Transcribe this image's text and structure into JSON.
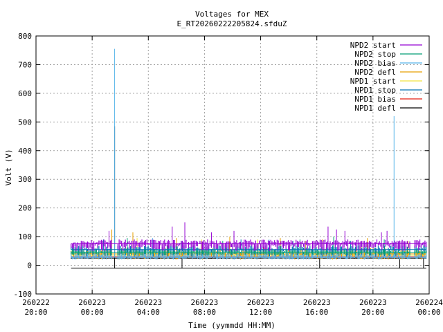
{
  "chart_data": {
    "type": "line",
    "title": "Voltages for MEX",
    "subtitle": "E_RT20260222205824.sfduZ",
    "xlabel": "Time (yymmdd HH:MM)",
    "ylabel": "Volt (V)",
    "ylim": [
      -100,
      800
    ],
    "xlim_hours": [
      -4,
      24
    ],
    "grid": true,
    "legend_position": "top-right",
    "y_ticks": [
      -100,
      0,
      100,
      200,
      300,
      400,
      500,
      600,
      700,
      800
    ],
    "x_ticks": [
      {
        "hour": -4,
        "date": "260222",
        "time": "20:00"
      },
      {
        "hour": 0,
        "date": "260223",
        "time": "00:00"
      },
      {
        "hour": 4,
        "date": "260223",
        "time": "04:00"
      },
      {
        "hour": 8,
        "date": "260223",
        "time": "08:00"
      },
      {
        "hour": 12,
        "date": "260223",
        "time": "12:00"
      },
      {
        "hour": 16,
        "date": "260223",
        "time": "16:00"
      },
      {
        "hour": 20,
        "date": "260223",
        "time": "20:00"
      },
      {
        "hour": 24,
        "date": "260224",
        "time": "00:00"
      }
    ],
    "series": [
      {
        "name": "NPD2 start",
        "color": "#9400d3",
        "base": 75,
        "band": [
          50,
          90
        ],
        "spikes": [
          [
            1.2,
            120
          ],
          [
            5.7,
            135
          ],
          [
            6.6,
            150
          ],
          [
            8.5,
            115
          ],
          [
            10.1,
            120
          ],
          [
            16.8,
            135
          ],
          [
            17.4,
            125
          ],
          [
            18.0,
            120
          ],
          [
            20.6,
            115
          ],
          [
            21.0,
            120
          ]
        ]
      },
      {
        "name": "NPD2 stop",
        "color": "#009e73",
        "base": 45,
        "band": [
          35,
          55
        ],
        "spikes": [
          [
            2.5,
            95
          ],
          [
            9.3,
            85
          ],
          [
            14.8,
            90
          ],
          [
            17.2,
            100
          ],
          [
            20.8,
            90
          ]
        ]
      },
      {
        "name": "NPD2 bias",
        "color": "#56b4e9",
        "base": 28,
        "band": [
          20,
          50
        ],
        "spikes": [
          [
            1.6,
            755
          ],
          [
            21.5,
            520
          ],
          [
            4.3,
            95
          ],
          [
            12.6,
            90
          ]
        ]
      },
      {
        "name": "NPD2 defl",
        "color": "#e69f00",
        "base": 40,
        "band": [
          20,
          60
        ],
        "spikes": [
          [
            1.4,
            125
          ],
          [
            2.9,
            115
          ],
          [
            6.0,
            95
          ],
          [
            9.8,
            100
          ],
          [
            13.4,
            95
          ],
          [
            16.4,
            90
          ],
          [
            19.6,
            95
          ],
          [
            22.5,
            85
          ]
        ]
      },
      {
        "name": "NPD1 start",
        "color": "#f0e442",
        "base": 35,
        "band": [
          30,
          40
        ],
        "spikes": [
          [
            3.2,
            95
          ],
          [
            7.8,
            90
          ],
          [
            11.8,
            90
          ],
          [
            15.2,
            85
          ],
          [
            19.2,
            85
          ]
        ]
      },
      {
        "name": "NPD1 stop",
        "color": "#0072b2",
        "base": 55,
        "band": [
          30,
          70
        ],
        "spikes": [
          [
            0.8,
            90
          ],
          [
            6.4,
            85
          ],
          [
            10.6,
            90
          ],
          [
            14.3,
            85
          ],
          [
            18.4,
            85
          ]
        ]
      },
      {
        "name": "NPD1 bias",
        "color": "#e51e10",
        "base": 30,
        "band": [
          28,
          32
        ],
        "spikes": [
          [
            5.4,
            70
          ],
          [
            12.2,
            65
          ]
        ]
      },
      {
        "name": "NPD1 defl",
        "color": "#000000",
        "base": 25,
        "band": [
          23,
          27
        ],
        "spikes": [
          [
            1.6,
            485
          ],
          [
            1.6,
            -10
          ],
          [
            6.4,
            -10
          ],
          [
            16.2,
            -10
          ],
          [
            21.9,
            -10
          ],
          [
            23.6,
            -10
          ]
        ]
      }
    ]
  }
}
